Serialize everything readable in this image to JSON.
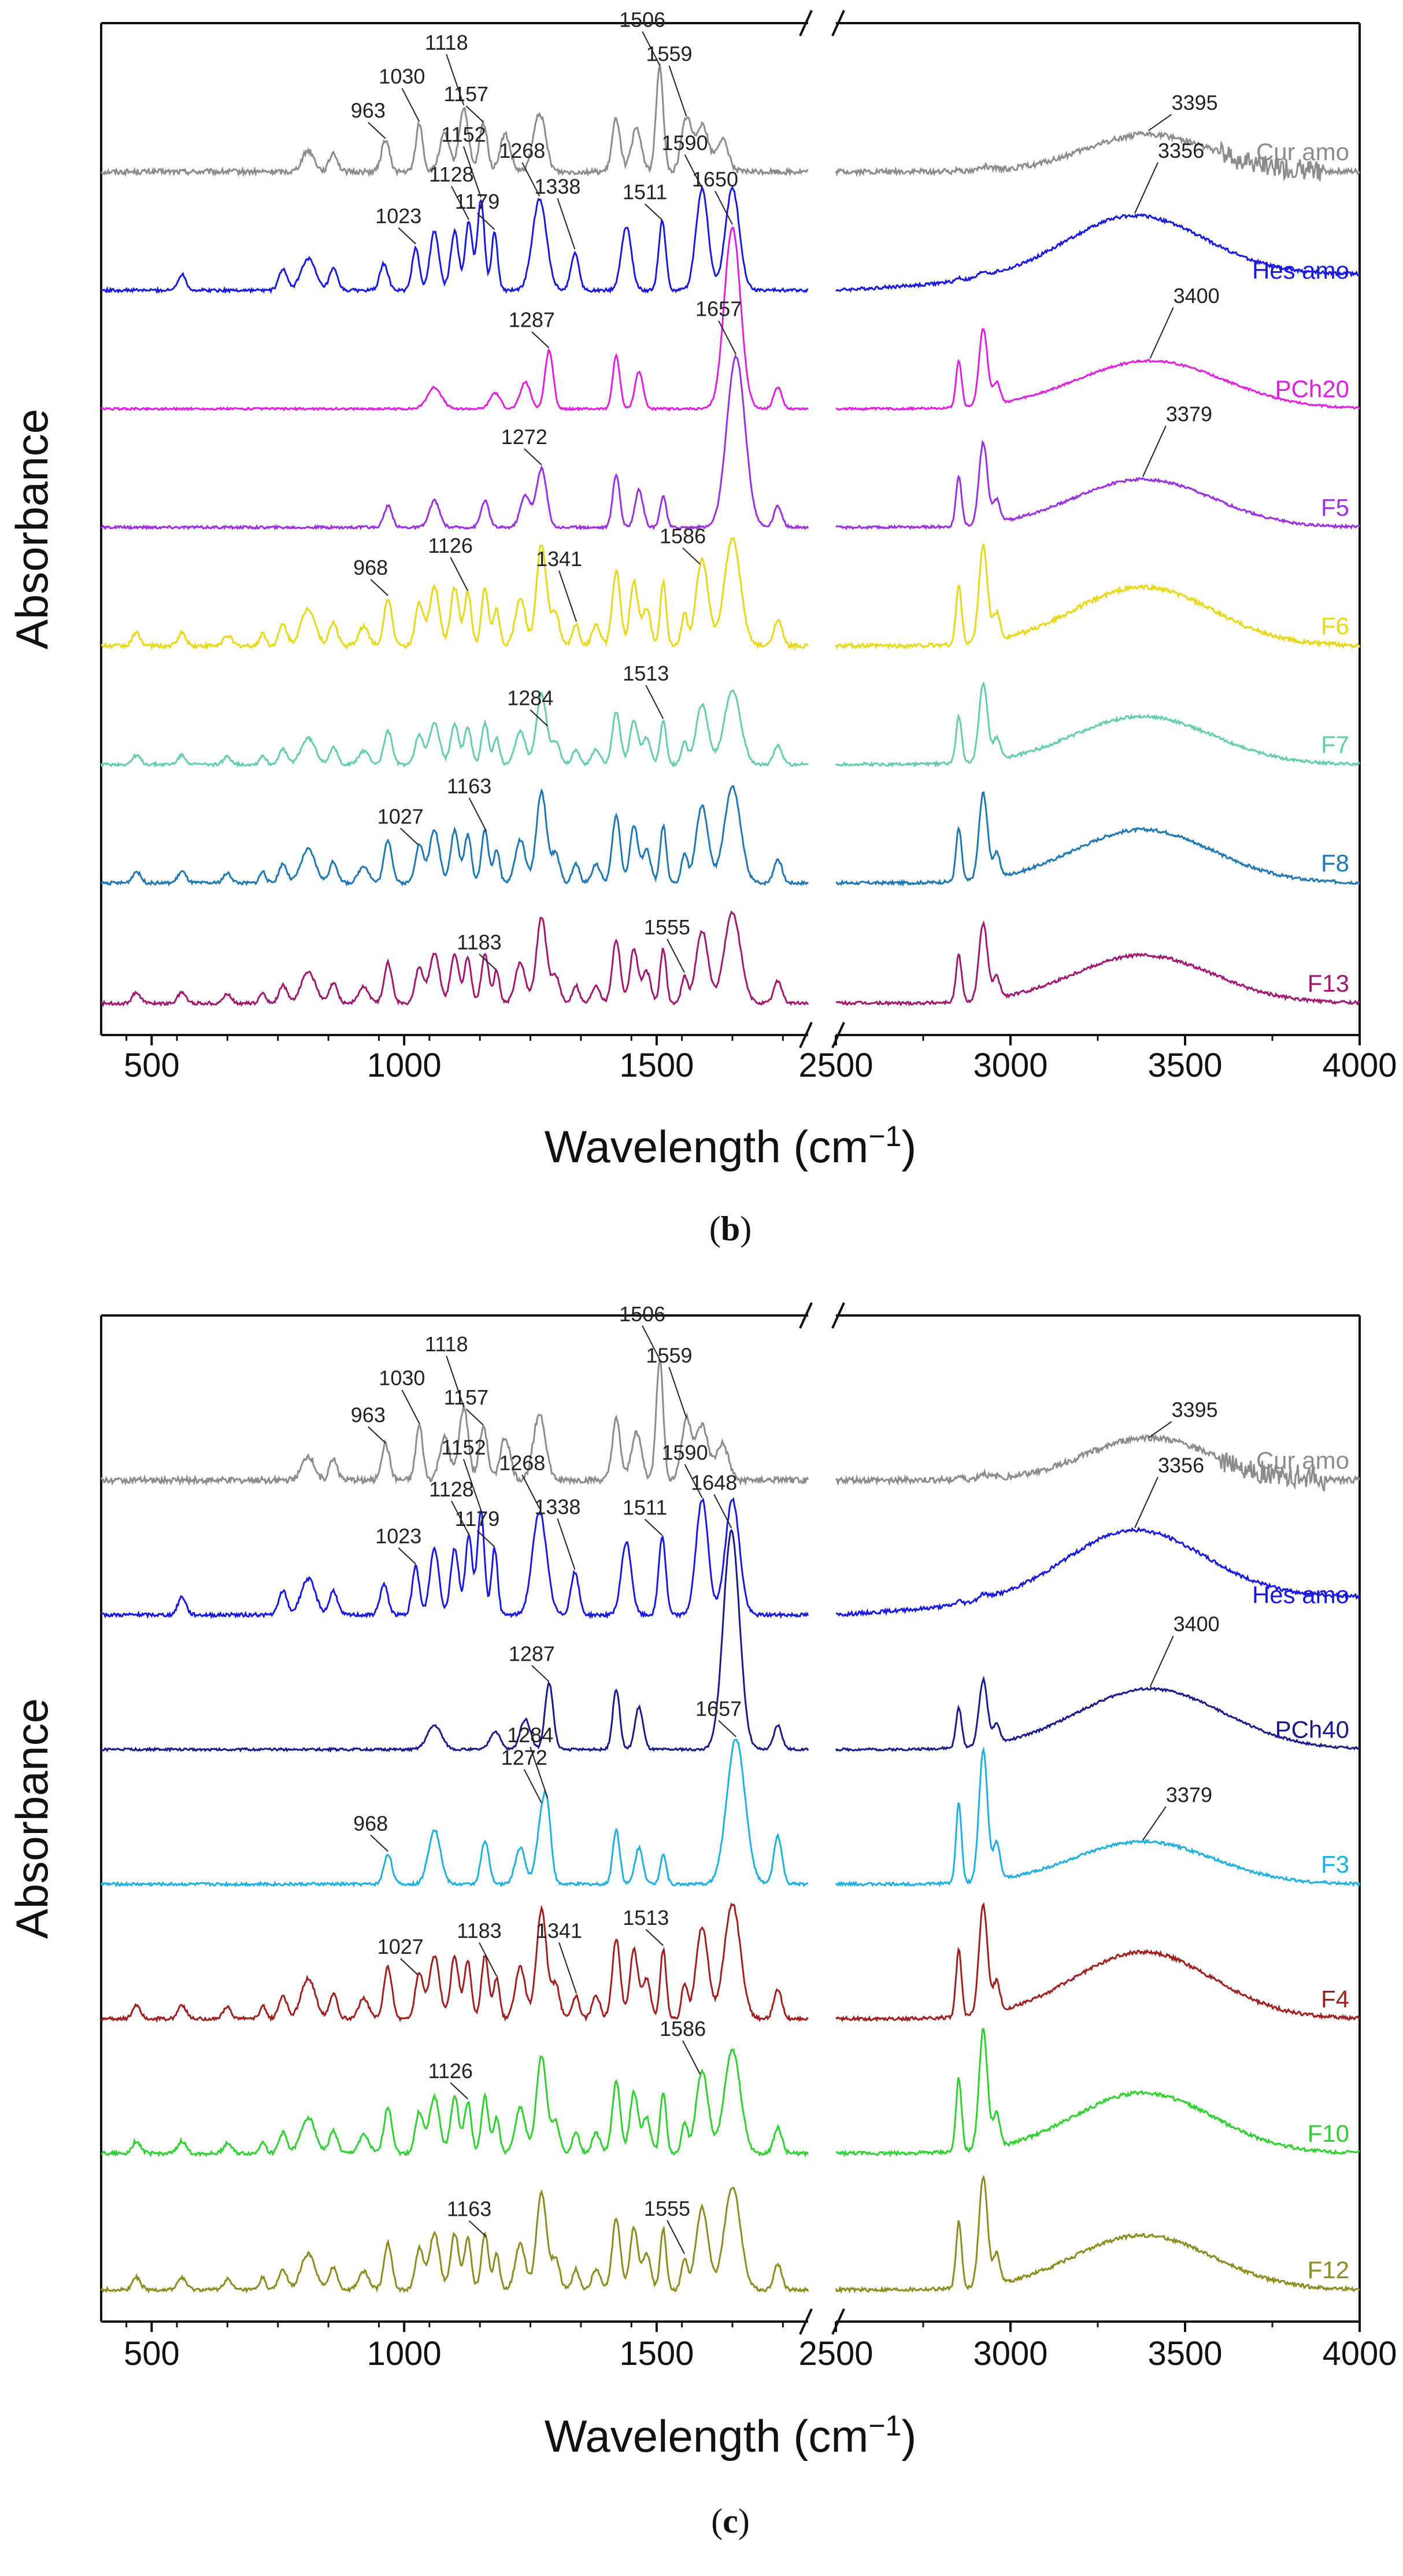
{
  "chart_data": [
    {
      "type": "line",
      "panel": "(b)",
      "panel_caption_open": "(",
      "panel_caption_letter": "b",
      "panel_caption_close": ")",
      "xlabel": "Wavelength (cm",
      "xlabel_sup": "−1",
      "xlabel_close": ")",
      "ylabel": "Absorbance",
      "x_break": [
        1800,
        2500
      ],
      "xlim_left": [
        400,
        1800
      ],
      "xlim_right": [
        2500,
        4000
      ],
      "x_ticks": [
        "500",
        "1000",
        "1500",
        "2500",
        "3000",
        "3500",
        "4000"
      ],
      "series": [
        {
          "name": "Cur amo",
          "color": "#8c8c8c",
          "peaks": [
            963,
            1030,
            1118,
            1157,
            1506,
            1559,
            3395
          ],
          "peak_labels": [
            "963",
            "1030",
            "1118",
            "1157",
            "1506",
            "1559",
            "3395"
          ]
        },
        {
          "name": "Hes amo",
          "color": "#1a1adc",
          "peaks": [
            1023,
            1128,
            1152,
            1179,
            1268,
            1338,
            1511,
            1590,
            3356
          ],
          "peak_labels": [
            "1023",
            "1128",
            "1152",
            "1179",
            "1268",
            "1338",
            "1511",
            "1590",
            "3356"
          ]
        },
        {
          "name": "PCh20",
          "color": "#e020e0",
          "peaks": [
            1287,
            1650,
            3400
          ],
          "peak_labels": [
            "1287",
            "1650",
            "3400"
          ]
        },
        {
          "name": "F5",
          "color": "#9b30e0",
          "peaks": [
            1272,
            1657,
            3379
          ],
          "peak_labels": [
            "1272",
            "1657",
            "3379"
          ]
        },
        {
          "name": "F6",
          "color": "#e8d81a",
          "peaks": [
            968,
            1126,
            1341,
            1586
          ],
          "peak_labels": [
            "968",
            "1126",
            "1341",
            "1586"
          ]
        },
        {
          "name": "F7",
          "color": "#66ccb0",
          "peaks": [
            1284,
            1513
          ],
          "peak_labels": [
            "1284",
            "1513"
          ]
        },
        {
          "name": "F8",
          "color": "#1f78b4",
          "peaks": [
            1027,
            1163
          ],
          "peak_labels": [
            "1027",
            "1163"
          ]
        },
        {
          "name": "F13",
          "color": "#a01870",
          "peaks": [
            1183,
            1555
          ],
          "peak_labels": [
            "1183",
            "1555"
          ]
        }
      ]
    },
    {
      "type": "line",
      "panel": "(c)",
      "panel_caption_open": "(",
      "panel_caption_letter": "c",
      "panel_caption_close": ")",
      "xlabel": "Wavelength (cm",
      "xlabel_sup": "−1",
      "xlabel_close": ")",
      "ylabel": "Absorbance",
      "x_break": [
        1800,
        2500
      ],
      "xlim_left": [
        400,
        1800
      ],
      "xlim_right": [
        2500,
        4000
      ],
      "x_ticks": [
        "500",
        "1000",
        "1500",
        "2500",
        "3000",
        "3500",
        "4000"
      ],
      "series": [
        {
          "name": "Cur amo",
          "color": "#8c8c8c",
          "peaks": [
            963,
            1030,
            1118,
            1157,
            1506,
            1559,
            3395
          ],
          "peak_labels": [
            "963",
            "1030",
            "1118",
            "1157",
            "1506",
            "1559",
            "3395"
          ]
        },
        {
          "name": "Hes amo",
          "color": "#1a1adc",
          "peaks": [
            1023,
            1128,
            1152,
            1179,
            1268,
            1338,
            1511,
            1590,
            3356
          ],
          "peak_labels": [
            "1023",
            "1128",
            "1152",
            "1179",
            "1268",
            "1338",
            "1511",
            "1590",
            "3356"
          ]
        },
        {
          "name": "PCh40",
          "color": "#1a1a8c",
          "peaks": [
            1287,
            1648,
            3400
          ],
          "peak_labels": [
            "1287",
            "1648",
            "3400"
          ]
        },
        {
          "name": "F3",
          "color": "#20b0e0",
          "peaks": [
            968,
            1272,
            1284,
            1657,
            3379
          ],
          "peak_labels": [
            "968",
            "1272",
            "1284",
            "1657",
            "3379"
          ]
        },
        {
          "name": "F4",
          "color": "#a02020",
          "peaks": [
            1027,
            1183,
            1341,
            1513
          ],
          "peak_labels": [
            "1027",
            "1183",
            "1341",
            "1513"
          ]
        },
        {
          "name": "F10",
          "color": "#30d030",
          "peaks": [
            1126,
            1586
          ],
          "peak_labels": [
            "1126",
            "1586"
          ]
        },
        {
          "name": "F12",
          "color": "#8c8c20",
          "peaks": [
            1163,
            1555
          ],
          "peak_labels": [
            "1163",
            "1555"
          ]
        }
      ]
    }
  ]
}
